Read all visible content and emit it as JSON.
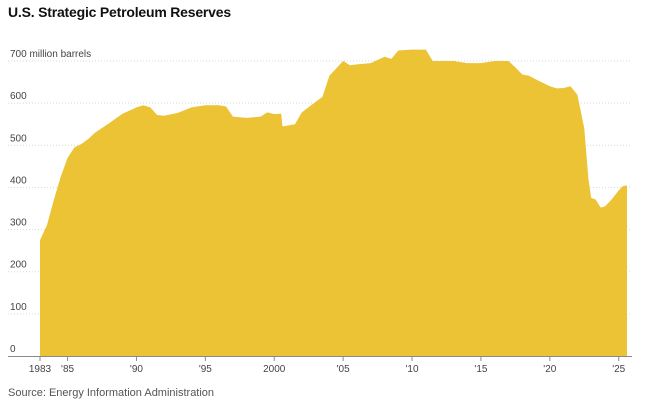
{
  "chart_data": {
    "type": "area",
    "title": "U.S. Strategic Petroleum Reserves",
    "ylabel": "",
    "xlabel": "",
    "unit_label": "million barrels",
    "source": "Source: Energy Information Administration",
    "ylim": [
      0,
      700
    ],
    "xlim": [
      1983.0,
      2025.6
    ],
    "y_ticks": [
      0,
      100,
      200,
      300,
      400,
      500,
      600,
      700
    ],
    "y_tick_labels": [
      "0",
      "100",
      "200",
      "300",
      "400",
      "500",
      "600",
      "700 million barrels"
    ],
    "x_ticks": [
      1983,
      1985,
      1990,
      1995,
      2000,
      2005,
      2010,
      2015,
      2020,
      2025
    ],
    "x_tick_labels": [
      "1983",
      "'85",
      "'90",
      "'95",
      "2000",
      "'05",
      "'10",
      "'15",
      "'20",
      "'25"
    ],
    "grid": true,
    "fill_color": "#ebc334",
    "series": [
      {
        "x": [
          1983.0,
          1983.5,
          1984.0,
          1984.5,
          1985.0,
          1985.5,
          1986.0,
          1986.5,
          1987.0,
          1988.0,
          1989.0,
          1990.0,
          1990.5,
          1991.0,
          1991.5,
          1992.0,
          1993.0,
          1994.0,
          1995.0,
          1996.0,
          1996.5,
          1997.0,
          1998.0,
          1999.0,
          1999.5,
          2000.0,
          2000.5,
          2000.6,
          2001.0,
          2001.5,
          2002.0,
          2003.0,
          2003.5,
          2004.0,
          2005.0,
          2005.5,
          2006.0,
          2007.0,
          2008.0,
          2008.5,
          2009.0,
          2010.0,
          2011.0,
          2011.5,
          2012.0,
          2013.0,
          2014.0,
          2015.0,
          2016.0,
          2017.0,
          2017.5,
          2018.0,
          2018.5,
          2019.0,
          2019.5,
          2020.0,
          2020.5,
          2021.0,
          2021.5,
          2022.0,
          2022.5,
          2022.8,
          2023.0,
          2023.3,
          2023.7,
          2024.0,
          2024.5,
          2025.0,
          2025.3,
          2025.6
        ],
        "values": [
          275,
          310,
          370,
          425,
          470,
          495,
          503,
          515,
          530,
          552,
          575,
          590,
          595,
          590,
          572,
          570,
          577,
          590,
          595,
          595,
          592,
          568,
          565,
          568,
          578,
          574,
          575,
          545,
          547,
          550,
          578,
          603,
          615,
          665,
          700,
          690,
          692,
          695,
          710,
          705,
          725,
          727,
          727,
          700,
          700,
          700,
          695,
          695,
          700,
          700,
          685,
          668,
          665,
          656,
          648,
          640,
          635,
          636,
          640,
          620,
          540,
          420,
          375,
          372,
          352,
          355,
          372,
          393,
          403,
          405
        ]
      }
    ]
  }
}
